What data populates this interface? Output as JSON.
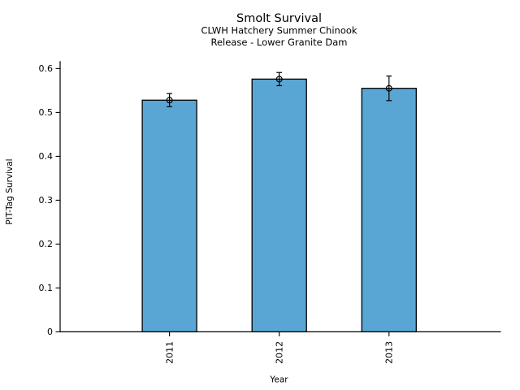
{
  "page": {
    "background": "#ffffff",
    "text_color": "#000000"
  },
  "chart_data": {
    "type": "bar",
    "title": "Smolt Survival",
    "subtitle_line1": "CLWH Hatchery Summer Chinook",
    "subtitle_line2": "Release - Lower Granite Dam",
    "xlabel": "Year",
    "ylabel": "PIT-Tag Survival",
    "categories": [
      "2011",
      "2012",
      "2013"
    ],
    "series": [
      {
        "name": "PIT-Tag Survival",
        "values": [
          0.528,
          0.576,
          0.555
        ],
        "errors": [
          0.015,
          0.015,
          0.028
        ]
      }
    ],
    "ylim": [
      0,
      0.617
    ],
    "yticks": [
      0,
      0.1,
      0.2,
      0.3,
      0.4,
      0.5,
      0.6
    ],
    "ytick_labels": [
      "0",
      "0.1",
      "0.2",
      "0.3",
      "0.4",
      "0.5",
      "0.6"
    ],
    "xtick_label_rotation_deg": 90,
    "grid": false,
    "legend": null,
    "bar_color": "#59A6D4",
    "bar_edge_color": "#000000",
    "error_color": "#000000",
    "error_marker": "open-circle",
    "spines": [
      "left",
      "bottom"
    ]
  }
}
